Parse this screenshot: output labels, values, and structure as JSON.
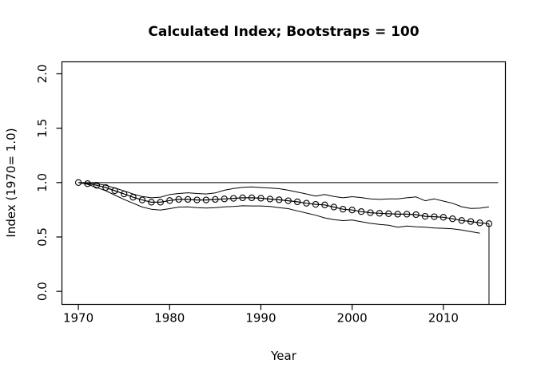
{
  "chart_data": {
    "type": "line",
    "title": "Calculated Index; Bootstraps = 100",
    "xlabel": "Year",
    "ylabel": "Index (1970= 1.0)",
    "grid": false,
    "legend": "none",
    "xlim": [
      1968.2,
      2016.8
    ],
    "ylim": [
      -0.12,
      2.11
    ],
    "x_tick_values": [
      1970,
      1980,
      1990,
      2000,
      2010
    ],
    "x_tick_labels": [
      "1970",
      "1980",
      "1990",
      "2000",
      "2010"
    ],
    "y_tick_values": [
      0.0,
      0.5,
      1.0,
      1.5,
      2.0
    ],
    "y_tick_labels": [
      "0.0",
      "0.5",
      "1.0",
      "1.5",
      "2.0"
    ],
    "reference_line": {
      "y": 1.0,
      "x_start": 1970,
      "x_end": 2016
    },
    "colors": {
      "line": "#000000",
      "background": "#ffffff"
    },
    "series": [
      {
        "name": "calculated-index",
        "marker": "open-circle",
        "x": [
          1970,
          1971,
          1972,
          1973,
          1974,
          1975,
          1976,
          1977,
          1978,
          1979,
          1980,
          1981,
          1982,
          1983,
          1984,
          1985,
          1986,
          1987,
          1988,
          1989,
          1990,
          1991,
          1992,
          1993,
          1994,
          1995,
          1996,
          1997,
          1998,
          1999,
          2000,
          2001,
          2002,
          2003,
          2004,
          2005,
          2006,
          2007,
          2008,
          2009,
          2010,
          2011,
          2012,
          2013,
          2014,
          2015
        ],
        "values": [
          1.0,
          0.99,
          0.975,
          0.955,
          0.925,
          0.895,
          0.865,
          0.84,
          0.82,
          0.82,
          0.835,
          0.845,
          0.845,
          0.84,
          0.84,
          0.845,
          0.85,
          0.855,
          0.86,
          0.86,
          0.856,
          0.848,
          0.842,
          0.833,
          0.823,
          0.81,
          0.8,
          0.795,
          0.775,
          0.755,
          0.748,
          0.733,
          0.723,
          0.718,
          0.714,
          0.71,
          0.71,
          0.705,
          0.69,
          0.686,
          0.681,
          0.667,
          0.652,
          0.642,
          0.63,
          0.622
        ]
      },
      {
        "name": "upper-bootstrap-ci",
        "marker": "none",
        "x": [
          1970,
          1971,
          1972,
          1973,
          1974,
          1975,
          1976,
          1977,
          1978,
          1979,
          1980,
          1981,
          1982,
          1983,
          1984,
          1985,
          1986,
          1987,
          1988,
          1989,
          1990,
          1991,
          1992,
          1993,
          1994,
          1995,
          1996,
          1997,
          1998,
          1999,
          2000,
          2001,
          2002,
          2003,
          2004,
          2005,
          2006,
          2007,
          2008,
          2009,
          2010,
          2011,
          2012,
          2013,
          2014,
          2015
        ],
        "values": [
          1.0,
          0.998,
          0.99,
          0.975,
          0.95,
          0.924,
          0.895,
          0.872,
          0.86,
          0.866,
          0.89,
          0.9,
          0.906,
          0.9,
          0.895,
          0.905,
          0.93,
          0.945,
          0.956,
          0.96,
          0.955,
          0.95,
          0.944,
          0.93,
          0.912,
          0.895,
          0.876,
          0.89,
          0.872,
          0.86,
          0.87,
          0.862,
          0.85,
          0.845,
          0.85,
          0.85,
          0.86,
          0.868,
          0.833,
          0.85,
          0.83,
          0.81,
          0.778,
          0.762,
          0.765,
          0.777
        ]
      },
      {
        "name": "lower-bootstrap-ci",
        "marker": "none",
        "x": [
          1970,
          1971,
          1972,
          1973,
          1974,
          1975,
          1976,
          1977,
          1978,
          1979,
          1980,
          1981,
          1982,
          1983,
          1984,
          1985,
          1986,
          1987,
          1988,
          1989,
          1990,
          1991,
          1992,
          1993,
          1994,
          1995,
          1996,
          1997,
          1998,
          1999,
          2000,
          2001,
          2002,
          2003,
          2004,
          2005,
          2006,
          2007,
          2008,
          2009,
          2010,
          2011,
          2012,
          2013,
          2014
        ],
        "values": [
          1.0,
          0.984,
          0.955,
          0.925,
          0.885,
          0.845,
          0.81,
          0.775,
          0.755,
          0.748,
          0.76,
          0.775,
          0.777,
          0.77,
          0.766,
          0.77,
          0.777,
          0.78,
          0.787,
          0.785,
          0.785,
          0.78,
          0.77,
          0.76,
          0.74,
          0.72,
          0.7,
          0.675,
          0.66,
          0.65,
          0.655,
          0.64,
          0.625,
          0.615,
          0.608,
          0.59,
          0.6,
          0.593,
          0.59,
          0.583,
          0.58,
          0.575,
          0.564,
          0.55,
          0.535
        ]
      }
    ],
    "lower_ci_whisker_2015": {
      "x": 2015,
      "y_top": 0.622,
      "y_bottom": -0.12
    }
  }
}
